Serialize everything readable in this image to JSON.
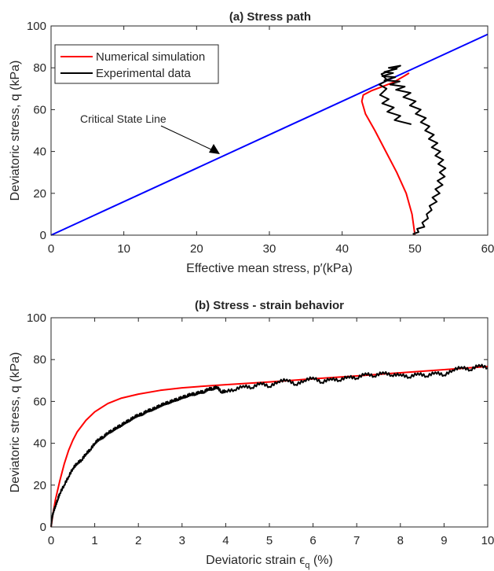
{
  "chart_data": [
    {
      "type": "line",
      "title": "(a) Stress path",
      "xlabel": "Effective mean stress, p′(kPa)",
      "ylabel": "Deviatoric stress, q (kPa)",
      "xlim": [
        0,
        60
      ],
      "ylim": [
        0,
        100
      ],
      "xticks": [
        "0",
        "10",
        "20",
        "30",
        "40",
        "50",
        "60"
      ],
      "yticks": [
        "0",
        "20",
        "40",
        "60",
        "80",
        "100"
      ],
      "grid": false,
      "legend_position": "top-left",
      "series": [
        {
          "name": "Critical State Line",
          "color": "#0000ff",
          "points": [
            [
              0,
              0
            ],
            [
              60,
              96
            ]
          ]
        },
        {
          "name": "Numerical simulation",
          "color": "#ff0000",
          "points": [
            [
              50,
              0
            ],
            [
              49.6,
              10
            ],
            [
              48.8,
              20
            ],
            [
              47.5,
              30
            ],
            [
              46,
              40
            ],
            [
              44.5,
              50
            ],
            [
              43.2,
              58
            ],
            [
              42.7,
              64
            ],
            [
              42.9,
              67
            ],
            [
              44,
              69
            ],
            [
              45.5,
              71
            ],
            [
              47,
              73
            ],
            [
              48.5,
              76
            ],
            [
              49.2,
              77.5
            ]
          ]
        },
        {
          "name": "Experimental data",
          "color": "#000000",
          "points": [
            [
              49.7,
              0.5
            ],
            [
              50.5,
              1.5
            ],
            [
              50.3,
              3
            ],
            [
              51.3,
              4
            ],
            [
              51,
              6
            ],
            [
              51.8,
              8
            ],
            [
              51.6,
              10
            ],
            [
              52.3,
              12
            ],
            [
              52,
              14
            ],
            [
              53,
              16
            ],
            [
              52.4,
              18
            ],
            [
              53.4,
              20
            ],
            [
              52.8,
              22
            ],
            [
              53.8,
              24
            ],
            [
              53.1,
              26
            ],
            [
              54.1,
              28
            ],
            [
              53.4,
              30
            ],
            [
              54.2,
              32
            ],
            [
              53.2,
              34
            ],
            [
              53.9,
              36
            ],
            [
              52.8,
              38
            ],
            [
              53.5,
              40
            ],
            [
              52.3,
              42
            ],
            [
              53.1,
              44
            ],
            [
              51.9,
              46
            ],
            [
              52.6,
              48
            ],
            [
              51.4,
              50
            ],
            [
              52,
              52
            ],
            [
              50.8,
              54
            ],
            [
              51.5,
              56
            ],
            [
              50.1,
              58
            ],
            [
              50.8,
              60
            ],
            [
              49.3,
              62
            ],
            [
              50.1,
              64
            ],
            [
              48.4,
              66
            ],
            [
              49.4,
              68
            ],
            [
              47.4,
              69.5
            ],
            [
              48.6,
              71
            ],
            [
              46.6,
              72
            ],
            [
              47.9,
              73.5
            ],
            [
              45.8,
              74
            ],
            [
              47.3,
              75.5
            ],
            [
              45.5,
              76
            ],
            [
              47,
              77.5
            ],
            [
              45.8,
              78
            ],
            [
              47.5,
              79.5
            ],
            [
              46.4,
              80
            ],
            [
              48,
              81
            ],
            [
              46.8,
              79
            ],
            [
              45.4,
              77
            ],
            [
              46.2,
              74
            ],
            [
              45.1,
              72
            ],
            [
              46.1,
              70
            ],
            [
              45.2,
              67
            ],
            [
              46.4,
              65
            ],
            [
              45.5,
              63
            ],
            [
              47.1,
              61
            ],
            [
              46.2,
              59
            ],
            [
              48,
              57
            ],
            [
              47.2,
              55
            ],
            [
              49.5,
              53
            ]
          ]
        }
      ],
      "annotations": [
        {
          "text": "Critical State Line",
          "points_to": [
            23,
            37
          ]
        }
      ]
    },
    {
      "type": "line",
      "title": "(b) Stress - strain behavior",
      "xlabel": "Deviatoric strain ϵ",
      "xlabel_sub": "q",
      "xlabel_suffix": " (%)",
      "ylabel": "Deviatoric stress, q (kPa)",
      "xlim": [
        0,
        10
      ],
      "ylim": [
        0,
        100
      ],
      "xticks": [
        "0",
        "1",
        "2",
        "3",
        "4",
        "5",
        "6",
        "7",
        "8",
        "9",
        "10"
      ],
      "yticks": [
        "0",
        "20",
        "40",
        "60",
        "80",
        "100"
      ],
      "grid": false,
      "series": [
        {
          "name": "Numerical simulation",
          "color": "#ff0000",
          "points": [
            [
              0,
              0
            ],
            [
              0.05,
              7
            ],
            [
              0.1,
              13
            ],
            [
              0.2,
              22
            ],
            [
              0.3,
              30
            ],
            [
              0.4,
              36.5
            ],
            [
              0.5,
              41.5
            ],
            [
              0.6,
              45.5
            ],
            [
              0.8,
              51
            ],
            [
              1,
              55
            ],
            [
              1.3,
              59
            ],
            [
              1.6,
              61.5
            ],
            [
              2,
              63.5
            ],
            [
              2.5,
              65.3
            ],
            [
              3,
              66.5
            ],
            [
              3.5,
              67.3
            ],
            [
              4,
              68
            ],
            [
              5,
              69.3
            ],
            [
              6,
              70.8
            ],
            [
              7,
              72.2
            ],
            [
              8,
              73.7
            ],
            [
              9,
              75.2
            ],
            [
              10,
              76.7
            ]
          ]
        },
        {
          "name": "Experimental data",
          "color": "#000000",
          "points": [
            [
              0,
              0
            ],
            [
              0.02,
              4
            ],
            [
              0.05,
              7
            ],
            [
              0.1,
              10
            ],
            [
              0.15,
              13
            ],
            [
              0.2,
              16
            ],
            [
              0.3,
              20
            ],
            [
              0.4,
              24
            ],
            [
              0.5,
              28
            ],
            [
              0.6,
              30.5
            ],
            [
              0.7,
              32
            ],
            [
              0.8,
              35
            ],
            [
              0.9,
              37
            ],
            [
              1,
              40
            ],
            [
              1.1,
              42
            ],
            [
              1.2,
              43
            ],
            [
              1.3,
              45
            ],
            [
              1.4,
              46
            ],
            [
              1.5,
              47.5
            ],
            [
              1.6,
              48.5
            ],
            [
              1.7,
              50
            ],
            [
              1.8,
              51
            ],
            [
              1.9,
              52.5
            ],
            [
              2,
              53.5
            ],
            [
              2.1,
              54
            ],
            [
              2.2,
              55.5
            ],
            [
              2.3,
              56
            ],
            [
              2.4,
              57
            ],
            [
              2.5,
              58
            ],
            [
              2.6,
              59
            ],
            [
              2.7,
              59.5
            ],
            [
              2.8,
              60.5
            ],
            [
              2.9,
              61
            ],
            [
              3,
              62
            ],
            [
              3.1,
              62.5
            ],
            [
              3.2,
              63.5
            ],
            [
              3.3,
              63.5
            ],
            [
              3.4,
              64.5
            ],
            [
              3.5,
              64.5
            ],
            [
              3.6,
              66
            ],
            [
              3.7,
              66
            ],
            [
              3.8,
              67
            ],
            [
              3.9,
              64.5
            ],
            [
              4,
              65
            ],
            [
              4.2,
              65.5
            ],
            [
              4.4,
              67.5
            ],
            [
              4.6,
              66.5
            ],
            [
              4.8,
              69
            ],
            [
              5,
              67
            ],
            [
              5.2,
              69.5
            ],
            [
              5.4,
              70.5
            ],
            [
              5.6,
              68
            ],
            [
              5.8,
              70
            ],
            [
              6,
              71.5
            ],
            [
              6.2,
              69
            ],
            [
              6.4,
              71
            ],
            [
              6.6,
              70
            ],
            [
              6.8,
              72
            ],
            [
              7,
              71
            ],
            [
              7.2,
              73.5
            ],
            [
              7.4,
              72
            ],
            [
              7.6,
              74
            ],
            [
              7.8,
              72.5
            ],
            [
              8,
              73
            ],
            [
              8.2,
              71.5
            ],
            [
              8.4,
              73.5
            ],
            [
              8.6,
              72
            ],
            [
              8.8,
              74
            ],
            [
              9,
              72.5
            ],
            [
              9.2,
              75
            ],
            [
              9.4,
              76.5
            ],
            [
              9.6,
              75
            ],
            [
              9.8,
              77.5
            ],
            [
              10,
              76
            ]
          ]
        }
      ]
    }
  ]
}
